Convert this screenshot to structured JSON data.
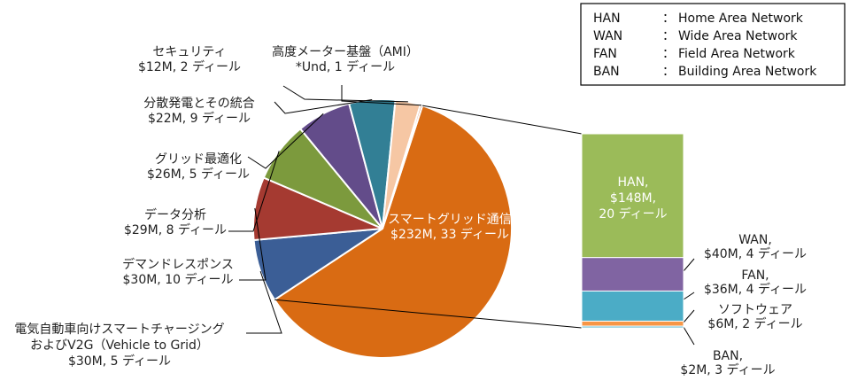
{
  "chart_data": {
    "type": "pie",
    "legend_position": "top-right",
    "legend": [
      {
        "abbr": "HAN",
        "sep": "：",
        "desc": "Home Area Network"
      },
      {
        "abbr": "WAN",
        "sep": "：",
        "desc": "Wide Area Network"
      },
      {
        "abbr": "FAN",
        "sep": "：",
        "desc": "Field Area Network"
      },
      {
        "abbr": "BAN",
        "sep": "：",
        "desc": "Building Area Network"
      }
    ],
    "pie_slices": [
      {
        "name": "スマートグリッド通信",
        "value": 232,
        "deals": 33,
        "label": [
          "スマートグリッド通信",
          "$232M, 33 ディール"
        ],
        "color": "#D96B13"
      },
      {
        "name": "電気自動車向けスマートチャージング",
        "value": 30,
        "deals": 5,
        "label": [
          "電気自動車向けスマートチャージング",
          "およびV2G（Vehicle to Grid）",
          "$30M, 5 ディール"
        ],
        "color": "#3B5E96"
      },
      {
        "name": "デマンドレスポンス",
        "value": 30,
        "deals": 10,
        "label": [
          "デマンドレスポンス",
          "$30M, 10 ディール"
        ],
        "color": "#A53A31"
      },
      {
        "name": "データ分析",
        "value": 29,
        "deals": 8,
        "label": [
          "データ分析",
          "$29M, 8 ディール"
        ],
        "color": "#7C9A3D"
      },
      {
        "name": "グリッド最適化",
        "value": 26,
        "deals": 5,
        "label": [
          "グリッド最適化",
          "$26M, 5 ディール"
        ],
        "color": "#634C8A"
      },
      {
        "name": "分散発電とその統合",
        "value": 22,
        "deals": 9,
        "label": [
          "分散発電とその統合",
          "$22M, 9 ディール"
        ],
        "color": "#327F95"
      },
      {
        "name": "セキュリティ",
        "value": 12,
        "deals": 2,
        "label": [
          "セキュリティ",
          "$12M, 2 ディール"
        ],
        "color": "#F6C7A4"
      },
      {
        "name": "高度メーター基盤（AMI）",
        "value": 1,
        "deals": 1,
        "label": [
          "高度メーター基盤（AMI）",
          "*Und, 1 ディール"
        ],
        "color": "#C8612A"
      }
    ],
    "stacked_bar": {
      "parent": "スマートグリッド通信",
      "segments": [
        {
          "name": "HAN",
          "value": 148,
          "deals": 20,
          "label": [
            "HAN,",
            "$148M,",
            "20 ディール"
          ],
          "color": "#9BBB59"
        },
        {
          "name": "WAN",
          "value": 40,
          "deals": 4,
          "label": [
            "WAN,",
            "$40M, 4 ディール"
          ],
          "color": "#8064A2"
        },
        {
          "name": "FAN",
          "value": 36,
          "deals": 4,
          "label": [
            "FAN,",
            "$36M, 4 ディール"
          ],
          "color": "#4BACC6"
        },
        {
          "name": "ソフトウェア",
          "value": 6,
          "deals": 2,
          "label": [
            "ソフトウェア",
            "$6M,  2 ディール"
          ],
          "color": "#F79646"
        },
        {
          "name": "BAN",
          "value": 2,
          "deals": 3,
          "label": [
            "BAN,",
            "$2M, 3 ディール"
          ],
          "color": "#4BACC6"
        }
      ]
    }
  }
}
